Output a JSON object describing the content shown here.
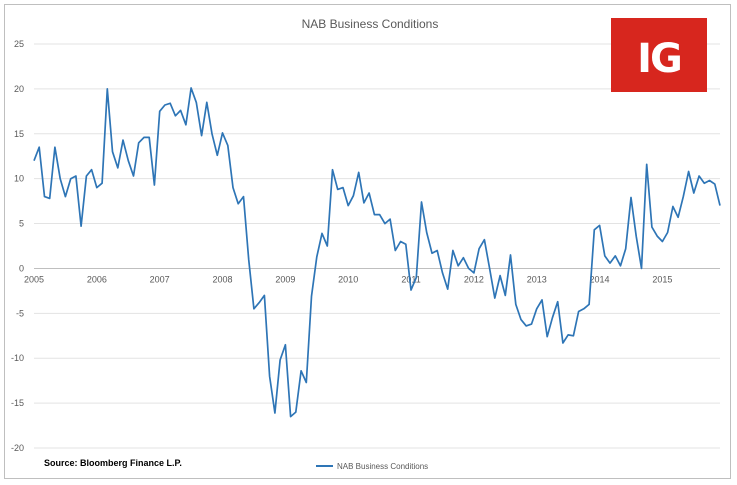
{
  "chart_data": {
    "type": "line",
    "title": "NAB Business Conditions",
    "xlabel": "",
    "ylabel": "",
    "ylim": [
      -20,
      25
    ],
    "yticks": [
      25,
      20,
      15,
      10,
      5,
      0,
      -5,
      -10,
      -15,
      -20
    ],
    "year_ticks": [
      "2005",
      "2006",
      "2007",
      "2008",
      "2009",
      "2010",
      "2011",
      "2012",
      "2013",
      "2014",
      "2015"
    ],
    "grid": true,
    "legend_position": "bottom",
    "series": [
      {
        "name": "NAB Business Conditions",
        "color": "#2e75b6",
        "values": [
          12,
          13.5,
          8,
          7.8,
          13.5,
          10,
          8,
          10,
          10.3,
          4.7,
          10.3,
          11,
          9,
          9.5,
          20,
          13,
          11.2,
          14.3,
          12,
          10.3,
          14,
          14.6,
          14.6,
          9.3,
          17.5,
          18.2,
          18.4,
          17,
          17.6,
          16,
          20.1,
          18.5,
          14.8,
          18.5,
          15,
          12.6,
          15.1,
          13.7,
          9,
          7.2,
          8,
          1,
          -4.5,
          -3.8,
          -3,
          -12,
          -16.1,
          -10.2,
          -8.5,
          -16.5,
          -16,
          -11.4,
          -12.7,
          -3.1,
          1.3,
          3.9,
          2.5,
          11,
          8.8,
          9,
          7,
          8.1,
          10.7,
          7.3,
          8.4,
          6,
          6,
          5,
          5.5,
          2,
          3,
          2.7,
          -2.4,
          -1,
          7.4,
          4,
          1.7,
          2,
          -0.5,
          -2.3,
          2,
          0.3,
          1.2,
          0,
          -0.5,
          2.2,
          3.2,
          0,
          -3.3,
          -0.8,
          -3,
          1.5,
          -4,
          -5.7,
          -6.4,
          -6.2,
          -4.5,
          -3.5,
          -7.6,
          -5.5,
          -3.7,
          -8.3,
          -7.4,
          -7.5,
          -4.8,
          -4.5,
          -4,
          4.3,
          4.8,
          1.4,
          0.6,
          1.4,
          0.3,
          2.2,
          7.9,
          3.6,
          0,
          11.6,
          4.6,
          3.6,
          3,
          4,
          6.9,
          5.7,
          8,
          10.8,
          8.4,
          10.3,
          9.5,
          9.8,
          9.4,
          7
        ]
      }
    ]
  },
  "source_label": "Source: Bloomberg Finance L.P.",
  "logo": {
    "text": "IG",
    "color": "#d7261e"
  }
}
